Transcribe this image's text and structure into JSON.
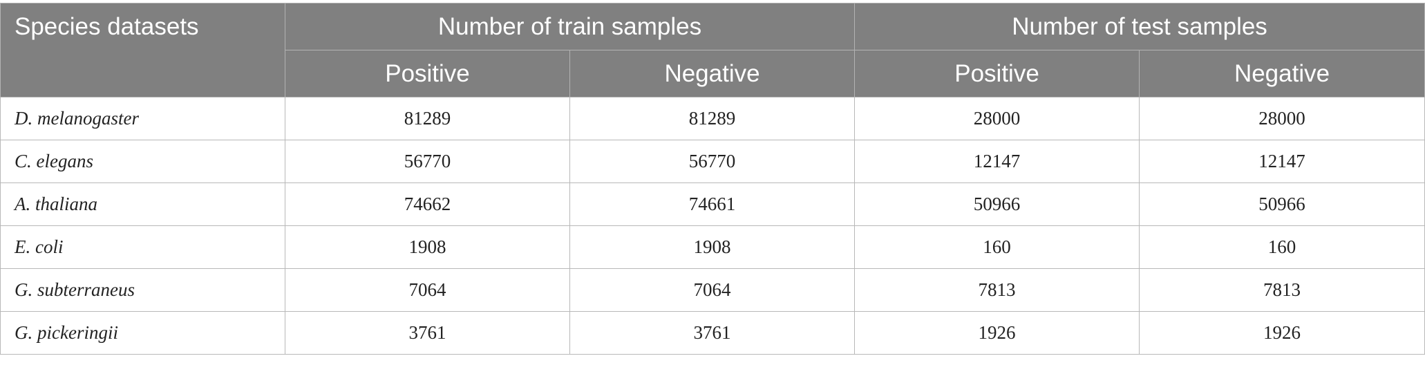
{
  "table": {
    "header": {
      "species": "Species datasets",
      "train_group": "Number of train samples",
      "test_group": "Number of test samples",
      "train_positive": "Positive",
      "train_negative": "Negative",
      "test_positive": "Positive",
      "test_negative": "Negative"
    },
    "rows": [
      {
        "species": "D. melanogaster",
        "train_positive": "81289",
        "train_negative": "81289",
        "test_positive": "28000",
        "test_negative": "28000"
      },
      {
        "species": "C. elegans",
        "train_positive": "56770",
        "train_negative": "56770",
        "test_positive": "12147",
        "test_negative": "12147"
      },
      {
        "species": "A. thaliana",
        "train_positive": "74662",
        "train_negative": "74661",
        "test_positive": "50966",
        "test_negative": "50966"
      },
      {
        "species": "E. coli",
        "train_positive": "1908",
        "train_negative": "1908",
        "test_positive": "160",
        "test_negative": "160"
      },
      {
        "species": "G. subterraneus",
        "train_positive": "7064",
        "train_negative": "7064",
        "test_positive": "7813",
        "test_negative": "7813"
      },
      {
        "species": "G. pickeringii",
        "train_positive": "3761",
        "train_negative": "3761",
        "test_positive": "1926",
        "test_negative": "1926"
      }
    ]
  }
}
